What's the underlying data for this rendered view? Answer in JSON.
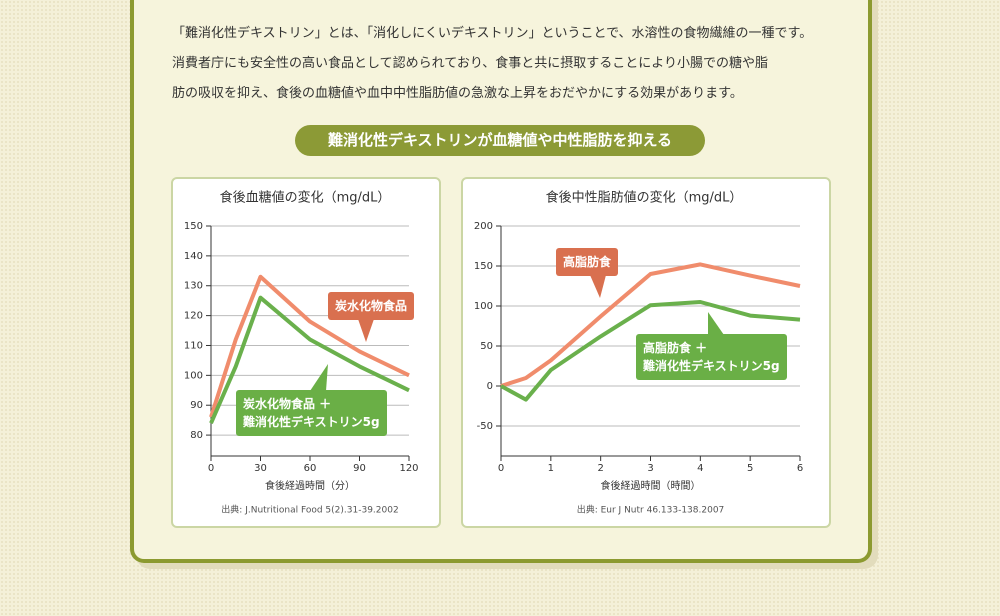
{
  "intro": [
    "「難消化性デキストリン」とは、「消化しにくいデキストリン」ということで、水溶性の食物繊維の一種です。",
    "消費者庁にも安全性の高い食品として認められており、食事と共に摂取することにより小腸での糖や脂",
    "肪の吸収を抑え、食後の血糖値や血中中性脂肪値の急激な上昇をおだやかにする効果があります。"
  ],
  "heading": "難消化性デキストリンが血糖値や中性脂肪を抑える",
  "chart_data": [
    {
      "type": "line",
      "title": "食後血糖値の変化（mg/dL）",
      "xlabel": "食後経過時間（分）",
      "source": "出典: J.Nutritional Food 5(2).31-39.2002",
      "x": [
        0,
        15,
        30,
        60,
        90,
        120
      ],
      "series": [
        {
          "name": "炭水化物食品",
          "color": "#f08c6c",
          "values": [
            86,
            112,
            133,
            118,
            108,
            100
          ]
        },
        {
          "name": "炭水化物食品 ＋\n難消化性デキストリン5g",
          "color": "#6ab04c",
          "values": [
            84,
            103,
            126,
            112,
            103,
            95
          ]
        }
      ],
      "xlim": [
        0,
        120
      ],
      "xticks": [
        0,
        30,
        60,
        90,
        120
      ],
      "ylim": [
        73,
        150
      ],
      "yticks": [
        80,
        90,
        100,
        110,
        120,
        130,
        140,
        150
      ],
      "grid": true
    },
    {
      "type": "line",
      "title": "食後中性脂肪値の変化（mg/dL）",
      "xlabel": "食後経過時間（時間）",
      "source": "出典: Eur J Nutr 46.133-138.2007",
      "x": [
        0,
        0.5,
        1,
        2,
        3,
        4,
        5,
        6
      ],
      "series": [
        {
          "name": "高脂肪食",
          "color": "#f08c6c",
          "values": [
            0,
            10,
            32,
            87,
            140,
            152,
            138,
            125
          ]
        },
        {
          "name": "高脂肪食 ＋\n難消化性デキストリン5g",
          "color": "#6ab04c",
          "values": [
            0,
            -17,
            20,
            62,
            101,
            105,
            88,
            83
          ]
        }
      ],
      "xlim": [
        0,
        6
      ],
      "xticks": [
        0,
        1,
        2,
        3,
        4,
        5,
        6
      ],
      "ylim": [
        -87.5,
        200
      ],
      "yticks": [
        -50,
        0,
        50,
        100,
        150,
        200
      ],
      "grid": true
    }
  ]
}
